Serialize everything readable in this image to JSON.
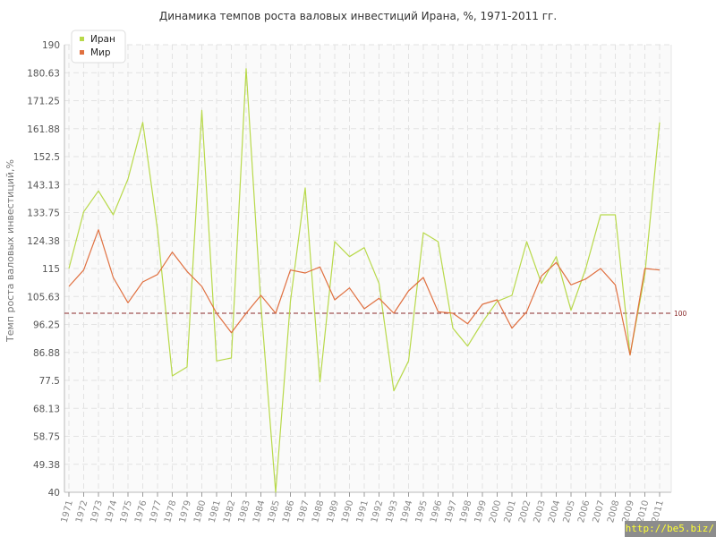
{
  "watermark": "http://be5.biz/",
  "chart_data": {
    "type": "line",
    "title": "Динамика темпов роста валовых инвестиций Ирана, %, 1971-2011 гг.",
    "xlabel": "",
    "ylabel": "Темп роста валовых инвестиций,%",
    "ylim": [
      40,
      190
    ],
    "yticks": [
      "190",
      "180.63",
      "171.25",
      "161.88",
      "152.5",
      "143.13",
      "133.75",
      "124.38",
      "115",
      "105.63",
      "96.25",
      "86.88",
      "77.5",
      "68.13",
      "58.75",
      "49.38",
      "40"
    ],
    "categories": [
      "1971",
      "1972",
      "1973",
      "1974",
      "1975",
      "1976",
      "1977",
      "1978",
      "1979",
      "1980",
      "1981",
      "1982",
      "1983",
      "1984",
      "1985",
      "1986",
      "1987",
      "1988",
      "1989",
      "1990",
      "1991",
      "1992",
      "1993",
      "1994",
      "1995",
      "1996",
      "1997",
      "1998",
      "1999",
      "2000",
      "2001",
      "2002",
      "2003",
      "2004",
      "2005",
      "2006",
      "2007",
      "2008",
      "2009",
      "2010",
      "2011"
    ],
    "reference_line": {
      "value": 100,
      "label": "100",
      "color": "#8a2a2a"
    },
    "legend_position": "top-left",
    "grid": true,
    "series": [
      {
        "name": "Иран",
        "color": "#b8d94a",
        "values": [
          115,
          134,
          141,
          133,
          145,
          164,
          128,
          79,
          82,
          168,
          84,
          85,
          182,
          103,
          40,
          104,
          142,
          77,
          124,
          119,
          122,
          110,
          74,
          84,
          127,
          124,
          95,
          89,
          97,
          104,
          106,
          124,
          110,
          119,
          101,
          115,
          133,
          133,
          86,
          113,
          164
        ]
      },
      {
        "name": "Мир",
        "color": "#e07040",
        "values": [
          109,
          114.5,
          128,
          112,
          103.5,
          110.5,
          113,
          120.5,
          114,
          109,
          100,
          93.5,
          100,
          106,
          100,
          114.5,
          113.5,
          115.5,
          104.5,
          108.5,
          101.5,
          105,
          100,
          107.5,
          112,
          100.5,
          100,
          96.5,
          103,
          104.5,
          95,
          100.5,
          112.5,
          117,
          109.5,
          111.5,
          115,
          109.5,
          86,
          115,
          114.5
        ]
      }
    ]
  }
}
